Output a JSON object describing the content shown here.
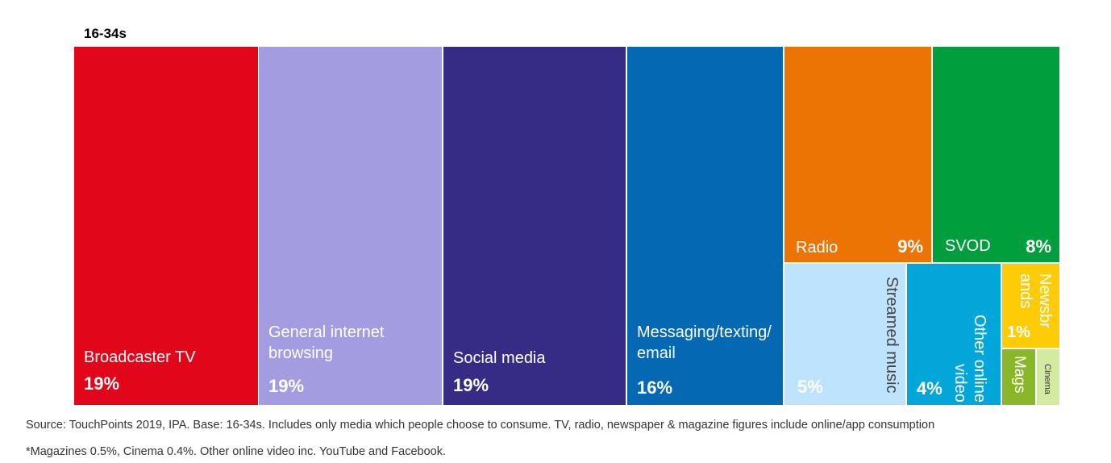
{
  "chart_data": {
    "type": "treemap",
    "title": "16-34s",
    "colors": {
      "broadcaster_tv": "#e1061a",
      "general_internet": "#a39ce0",
      "social_media": "#372c85",
      "messaging": "#0468b3",
      "radio": "#ec7404",
      "svod": "#009e3d",
      "streamed_music": "#bee3fc",
      "other_online_video": "#03a6d8",
      "newsbrands": "#fdcc06",
      "mags": "#8ab72a",
      "cinema": "#d3eba0"
    },
    "items": [
      {
        "label": "Broadcaster TV",
        "value": 19,
        "pct": "19%"
      },
      {
        "label": "General internet browsing",
        "value": 19,
        "pct": "19%"
      },
      {
        "label": "Social media",
        "value": 19,
        "pct": "19%"
      },
      {
        "label": "Messaging/texting/ email",
        "value": 16,
        "pct": "16%"
      },
      {
        "label": "Radio",
        "value": 9,
        "pct": "9%"
      },
      {
        "label": "SVOD",
        "value": 8,
        "pct": "8%"
      },
      {
        "label": "Streamed music",
        "value": 5,
        "pct": "5%"
      },
      {
        "label": "Other online video",
        "value": 4,
        "pct": "4%"
      },
      {
        "label": "Newsbrands",
        "value": 1,
        "pct": "1%"
      },
      {
        "label": "Mags",
        "value": 0.5
      },
      {
        "label": "Cinema",
        "value": 0.4
      }
    ]
  },
  "notes": {
    "source": "Source: TouchPoints 2019, IPA. Base: 16-34s. Includes only media which people choose to consume. TV, radio, newspaper & magazine figures include online/app consumption",
    "footnote": "*Magazines 0.5%, Cinema 0.4%. Other online video inc. YouTube and Facebook."
  }
}
